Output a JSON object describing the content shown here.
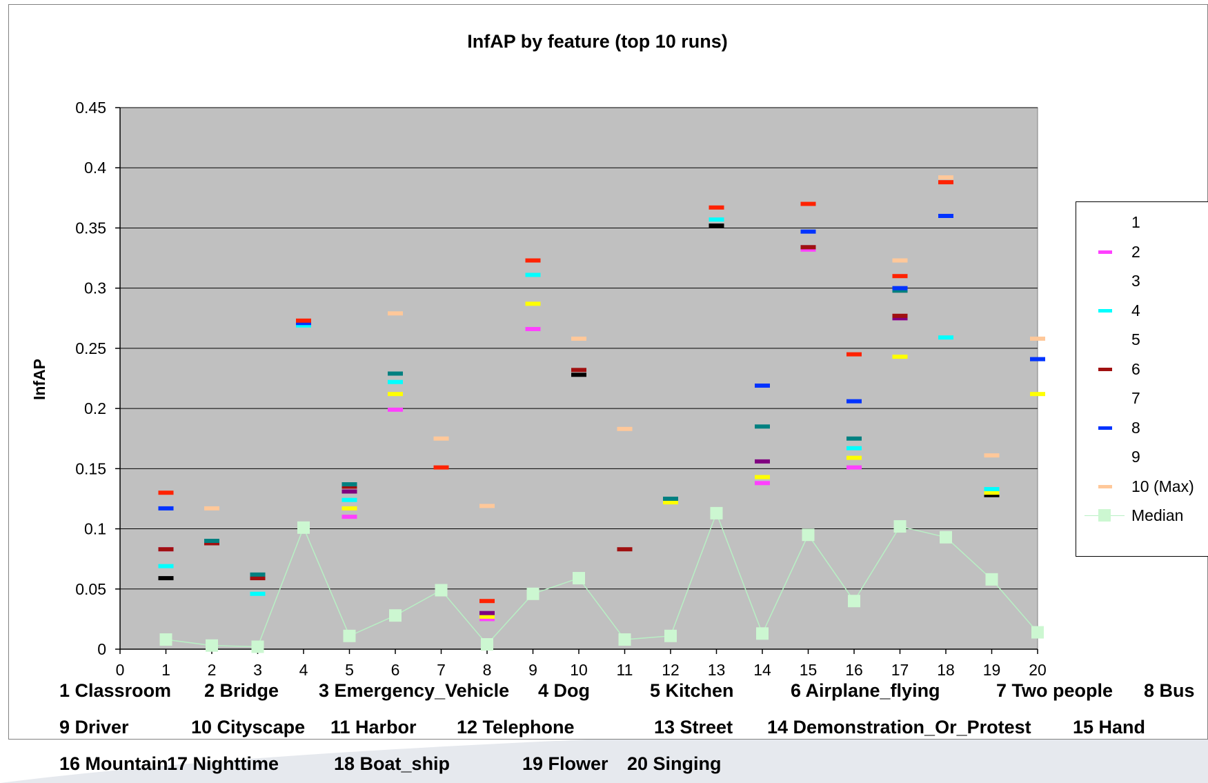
{
  "chart_data": {
    "type": "scatter",
    "title": "InfAP  by feature (top 10 runs)",
    "ylabel": "InfAP",
    "xlabel": "",
    "ylim": [
      0,
      0.45
    ],
    "xlim": [
      0,
      20
    ],
    "y_ticks": [
      "0.45",
      "0.4",
      "0.35",
      "0.3",
      "0.25",
      "0.2",
      "0.15",
      "0.1",
      "0.05",
      "0"
    ],
    "x_ticks": [
      "0",
      "1",
      "2",
      "3",
      "4",
      "5",
      "6",
      "7",
      "8",
      "9",
      "10",
      "11",
      "12",
      "13",
      "14",
      "15",
      "16",
      "17",
      "18",
      "19",
      "20"
    ],
    "grid": "horizontal",
    "legend_position": "right",
    "series": [
      {
        "name": "1",
        "color": "#000000",
        "points": [
          [
            1,
            0.059
          ],
          [
            3,
            0.06
          ],
          [
            10,
            0.228
          ],
          [
            13,
            0.352
          ],
          [
            17,
            0.298
          ],
          [
            19,
            0.128
          ]
        ]
      },
      {
        "name": "2",
        "color": "#ff40ff",
        "points": [
          [
            1,
            0.083
          ],
          [
            3,
            0.06
          ],
          [
            5,
            0.11
          ],
          [
            6,
            0.199
          ],
          [
            8,
            0.025
          ],
          [
            9,
            0.266
          ],
          [
            14,
            0.138
          ],
          [
            15,
            0.332
          ],
          [
            16,
            0.151
          ],
          [
            17,
            0.275
          ]
        ]
      },
      {
        "name": "3",
        "color": "#ffff00",
        "points": [
          [
            5,
            0.117
          ],
          [
            6,
            0.212
          ],
          [
            8,
            0.027
          ],
          [
            9,
            0.287
          ],
          [
            12,
            0.122
          ],
          [
            14,
            0.143
          ],
          [
            16,
            0.159
          ],
          [
            17,
            0.243
          ],
          [
            19,
            0.13
          ],
          [
            20,
            0.212
          ]
        ]
      },
      {
        "name": "4",
        "color": "#00ffff",
        "points": [
          [
            1,
            0.069
          ],
          [
            3,
            0.046
          ],
          [
            4,
            0.269
          ],
          [
            5,
            0.124
          ],
          [
            6,
            0.222
          ],
          [
            9,
            0.311
          ],
          [
            13,
            0.357
          ],
          [
            16,
            0.167
          ],
          [
            18,
            0.259
          ],
          [
            19,
            0.133
          ]
        ]
      },
      {
        "name": "5",
        "color": "#800080",
        "points": [
          [
            5,
            0.131
          ],
          [
            8,
            0.03
          ],
          [
            14,
            0.156
          ],
          [
            15,
            0.334
          ],
          [
            17,
            0.275
          ]
        ]
      },
      {
        "name": "6",
        "color": "#a01010",
        "points": [
          [
            1,
            0.083
          ],
          [
            2,
            0.088
          ],
          [
            3,
            0.059
          ],
          [
            5,
            0.135
          ],
          [
            10,
            0.232
          ],
          [
            11,
            0.083
          ],
          [
            15,
            0.334
          ],
          [
            17,
            0.277
          ]
        ]
      },
      {
        "name": "7",
        "color": "#008080",
        "points": [
          [
            2,
            0.09
          ],
          [
            3,
            0.062
          ],
          [
            5,
            0.137
          ],
          [
            6,
            0.229
          ],
          [
            12,
            0.125
          ],
          [
            14,
            0.185
          ],
          [
            16,
            0.175
          ],
          [
            17,
            0.298
          ]
        ]
      },
      {
        "name": "8",
        "color": "#0033ff",
        "points": [
          [
            1,
            0.117
          ],
          [
            4,
            0.271
          ],
          [
            14,
            0.219
          ],
          [
            15,
            0.347
          ],
          [
            16,
            0.206
          ],
          [
            17,
            0.3
          ],
          [
            18,
            0.36
          ],
          [
            20,
            0.241
          ]
        ]
      },
      {
        "name": "9",
        "color": "#ff2200",
        "points": [
          [
            1,
            0.13
          ],
          [
            4,
            0.273
          ],
          [
            7,
            0.151
          ],
          [
            8,
            0.04
          ],
          [
            9,
            0.323
          ],
          [
            13,
            0.367
          ],
          [
            15,
            0.37
          ],
          [
            16,
            0.245
          ],
          [
            17,
            0.31
          ],
          [
            18,
            0.388
          ]
        ]
      },
      {
        "name": "10 (Max)",
        "color": "#ffc89a",
        "points": [
          [
            2,
            0.117
          ],
          [
            6,
            0.279
          ],
          [
            7,
            0.175
          ],
          [
            8,
            0.119
          ],
          [
            10,
            0.258
          ],
          [
            11,
            0.183
          ],
          [
            17,
            0.323
          ],
          [
            18,
            0.392
          ],
          [
            19,
            0.161
          ],
          [
            20,
            0.258
          ]
        ]
      },
      {
        "name": "Median",
        "color": "#ccf7d1",
        "line_color": "#b8f0c4",
        "marker": "square",
        "points": [
          [
            1,
            0.008
          ],
          [
            2,
            0.003
          ],
          [
            3,
            0.002
          ],
          [
            4,
            0.101
          ],
          [
            5,
            0.011
          ],
          [
            6,
            0.028
          ],
          [
            7,
            0.049
          ],
          [
            8,
            0.004
          ],
          [
            9,
            0.046
          ],
          [
            10,
            0.059
          ],
          [
            11,
            0.008
          ],
          [
            12,
            0.011
          ],
          [
            13,
            0.113
          ],
          [
            14,
            0.013
          ],
          [
            15,
            0.095
          ],
          [
            16,
            0.04
          ],
          [
            17,
            0.102
          ],
          [
            18,
            0.093
          ],
          [
            19,
            0.058
          ],
          [
            20,
            0.014
          ]
        ]
      }
    ]
  },
  "legend": [
    {
      "label": "1",
      "color": "#000000",
      "swatch": false
    },
    {
      "label": "2",
      "color": "#ff40ff",
      "swatch": true
    },
    {
      "label": "3",
      "color": "#ffff00",
      "swatch": false
    },
    {
      "label": "4",
      "color": "#00ffff",
      "swatch": true
    },
    {
      "label": "5",
      "color": "#800080",
      "swatch": false
    },
    {
      "label": "6",
      "color": "#a01010",
      "swatch": true
    },
    {
      "label": "7",
      "color": "#008080",
      "swatch": false
    },
    {
      "label": "8",
      "color": "#0033ff",
      "swatch": true
    },
    {
      "label": "9",
      "color": "#ff2200",
      "swatch": false
    },
    {
      "label": "10 (Max)",
      "color": "#ffc89a",
      "swatch": true
    },
    {
      "label": "Median",
      "color": "#ccf7d1",
      "swatch": "marker"
    }
  ],
  "feature_captions": [
    "1 Classroom",
    "2 Bridge",
    "3 Emergency_Vehicle",
    "4 Dog",
    "5 Kitchen",
    "6 Airplane_flying",
    "7 Two people",
    "8 Bus",
    "9 Driver",
    "10 Cityscape",
    "11 Harbor",
    "12 Telephone",
    "13 Street",
    "14 Demonstration_Or_Protest",
    "15 Hand",
    "16 Mountain",
    "17 Nighttime",
    "18 Boat_ship",
    "19 Flower",
    "20 Singing"
  ]
}
